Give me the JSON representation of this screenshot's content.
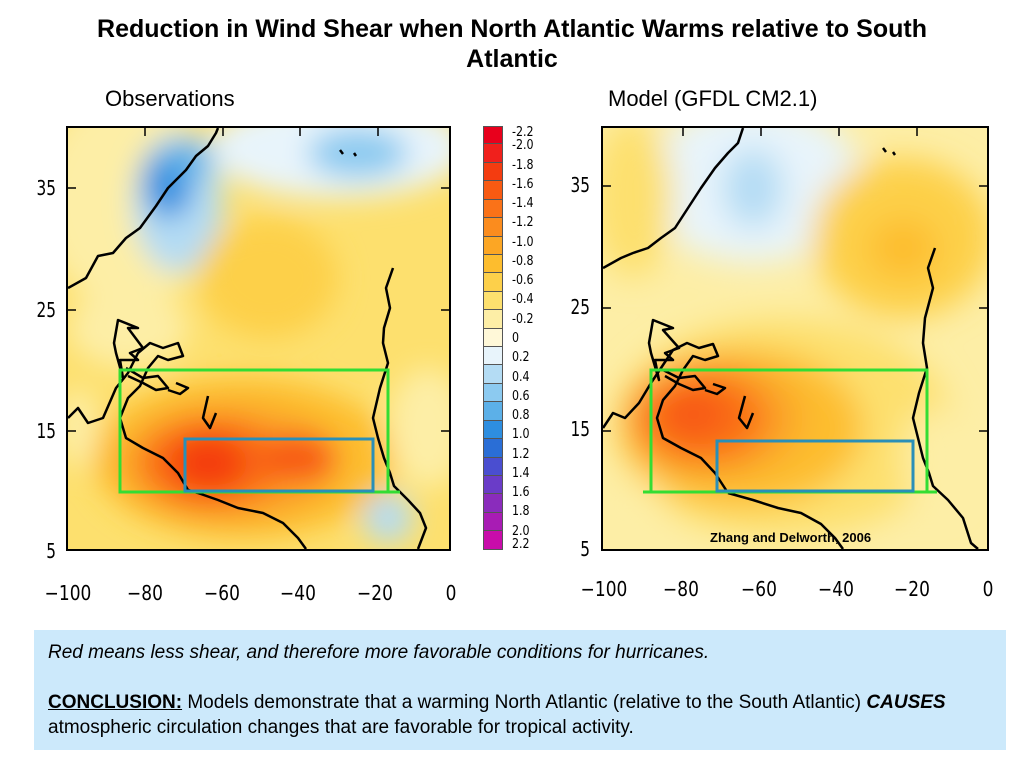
{
  "title": {
    "line1": "Reduction in Wind Shear when North Atlantic Warms relative to South",
    "line2": "Atlantic"
  },
  "panels": {
    "left": {
      "label": "Observations"
    },
    "right": {
      "label": "Model (GFDL CM2.1)"
    }
  },
  "axes": {
    "y_ticks": [
      "35",
      "25",
      "15",
      "5"
    ],
    "x_ticks": [
      "−100",
      "−80",
      "−60",
      "−40",
      "−20",
      "0"
    ]
  },
  "colorbar": {
    "labels": [
      "-2.2",
      "-2.0",
      "-1.8",
      "-1.6",
      "-1.4",
      "-1.2",
      "-1.0",
      "-0.8",
      "-0.6",
      "-0.4",
      "-0.2",
      "0",
      "0.2",
      "0.4",
      "0.6",
      "0.8",
      "1.0",
      "1.2",
      "1.4",
      "1.6",
      "1.8",
      "2.0",
      "2.2"
    ],
    "colors": [
      "#e8001c",
      "#f0201c",
      "#f43c10",
      "#f85a12",
      "#fa7218",
      "#fb8c1e",
      "#fca624",
      "#fdbd2e",
      "#fdd04a",
      "#fde06e",
      "#fdeea6",
      "#fff8d8",
      "#e8f4fb",
      "#b4dcf4",
      "#8ccaf0",
      "#5cb0e8",
      "#2e8ee0",
      "#2a6ed6",
      "#4a4ed0",
      "#6a3cc8",
      "#8a2cbc",
      "#a81cb4",
      "#c80caa"
    ]
  },
  "credit": "Zhang and Delworth, 2006",
  "note": {
    "line1": "Red means less shear, and therefore more favorable conditions for hurricanes.",
    "conclusion_label": "CONCLUSION:",
    "conclusion_text1": " Models demonstrate that a warming North Atlantic (relative to the South Atlantic) ",
    "causes": "CAUSES",
    "conclusion_text2": " atmospheric circulation changes that are favorable for tropical activity."
  },
  "colors": {
    "green_box": "#33dd33",
    "teal_box": "#2a8fb8",
    "note_background": "#cce9fb"
  }
}
